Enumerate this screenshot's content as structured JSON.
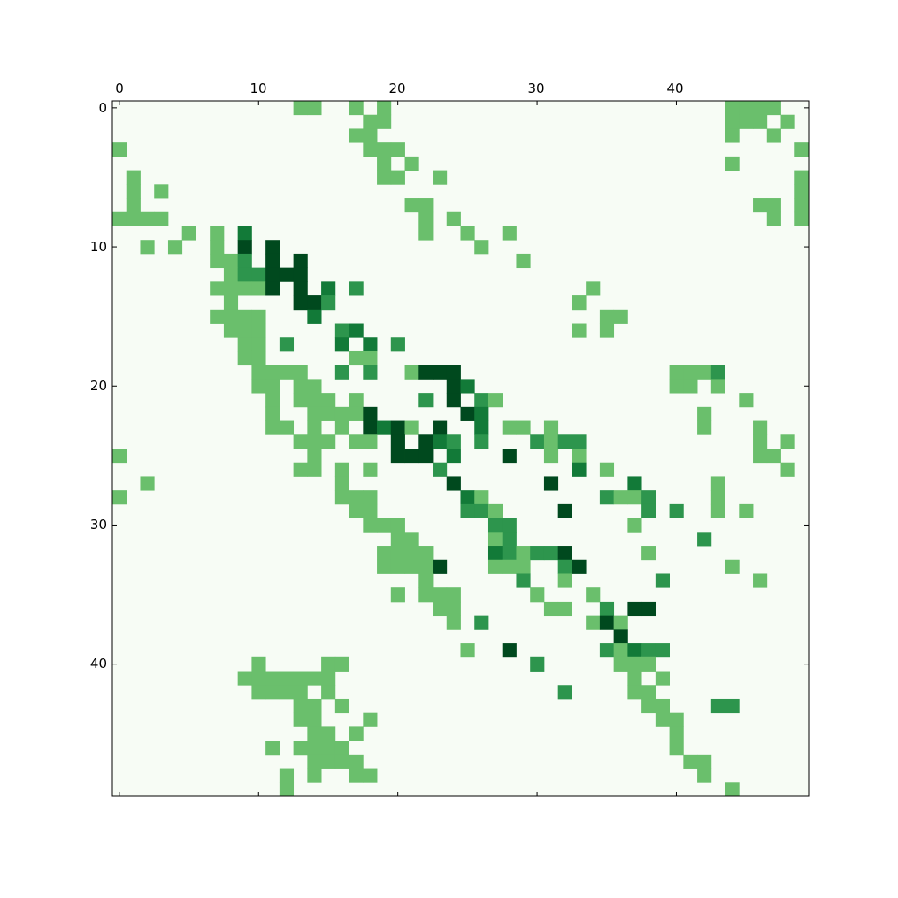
{
  "chart_data": {
    "type": "heatmap",
    "title": "",
    "xlabel": "",
    "ylabel": "",
    "rows": 50,
    "cols": 50,
    "x_axis_position": "top",
    "x_range": [
      0,
      49
    ],
    "y_range": [
      0,
      49
    ],
    "x_ticks": [
      "0",
      "10",
      "20",
      "30",
      "40"
    ],
    "y_ticks": [
      "0",
      "10",
      "20",
      "30",
      "40"
    ],
    "grid": false,
    "colormap": "Greens",
    "colors": {
      "background": "#f7fcf5",
      "level_1": "#6abf6c",
      "level_2": "#2d954d",
      "level_3": "#127a38",
      "level_4": "#00491e"
    },
    "value_levels": [
      1,
      2,
      3,
      4
    ],
    "cells": [
      [
        0,
        13,
        1
      ],
      [
        0,
        14,
        1
      ],
      [
        0,
        17,
        1
      ],
      [
        0,
        19,
        1
      ],
      [
        0,
        44,
        1
      ],
      [
        0,
        45,
        1
      ],
      [
        0,
        46,
        1
      ],
      [
        0,
        47,
        1
      ],
      [
        1,
        18,
        1
      ],
      [
        1,
        19,
        1
      ],
      [
        1,
        44,
        1
      ],
      [
        1,
        45,
        1
      ],
      [
        1,
        46,
        1
      ],
      [
        1,
        48,
        1
      ],
      [
        2,
        17,
        1
      ],
      [
        2,
        18,
        1
      ],
      [
        2,
        44,
        1
      ],
      [
        2,
        47,
        1
      ],
      [
        3,
        0,
        1
      ],
      [
        3,
        18,
        1
      ],
      [
        3,
        19,
        1
      ],
      [
        3,
        20,
        1
      ],
      [
        3,
        49,
        1
      ],
      [
        4,
        19,
        1
      ],
      [
        4,
        21,
        1
      ],
      [
        4,
        44,
        1
      ],
      [
        5,
        1,
        1
      ],
      [
        5,
        19,
        1
      ],
      [
        5,
        20,
        1
      ],
      [
        5,
        23,
        1
      ],
      [
        5,
        49,
        1
      ],
      [
        6,
        1,
        1
      ],
      [
        6,
        3,
        1
      ],
      [
        6,
        49,
        1
      ],
      [
        7,
        1,
        1
      ],
      [
        7,
        21,
        1
      ],
      [
        7,
        22,
        1
      ],
      [
        7,
        46,
        1
      ],
      [
        7,
        47,
        1
      ],
      [
        7,
        49,
        1
      ],
      [
        8,
        0,
        1
      ],
      [
        8,
        1,
        1
      ],
      [
        8,
        2,
        1
      ],
      [
        8,
        3,
        1
      ],
      [
        8,
        22,
        1
      ],
      [
        8,
        24,
        1
      ],
      [
        8,
        47,
        1
      ],
      [
        8,
        49,
        1
      ],
      [
        9,
        5,
        1
      ],
      [
        9,
        7,
        1
      ],
      [
        9,
        9,
        3
      ],
      [
        9,
        22,
        1
      ],
      [
        9,
        25,
        1
      ],
      [
        9,
        28,
        1
      ],
      [
        10,
        2,
        1
      ],
      [
        10,
        4,
        1
      ],
      [
        10,
        7,
        1
      ],
      [
        10,
        9,
        4
      ],
      [
        10,
        11,
        4
      ],
      [
        10,
        26,
        1
      ],
      [
        11,
        7,
        1
      ],
      [
        11,
        8,
        1
      ],
      [
        11,
        9,
        2
      ],
      [
        11,
        11,
        4
      ],
      [
        11,
        13,
        4
      ],
      [
        11,
        29,
        1
      ],
      [
        12,
        8,
        1
      ],
      [
        12,
        9,
        2
      ],
      [
        12,
        10,
        2
      ],
      [
        12,
        11,
        4
      ],
      [
        12,
        12,
        4
      ],
      [
        12,
        13,
        4
      ],
      [
        13,
        7,
        1
      ],
      [
        13,
        8,
        1
      ],
      [
        13,
        9,
        1
      ],
      [
        13,
        10,
        1
      ],
      [
        13,
        11,
        4
      ],
      [
        13,
        13,
        4
      ],
      [
        13,
        15,
        3
      ],
      [
        13,
        17,
        2
      ],
      [
        13,
        34,
        1
      ],
      [
        14,
        8,
        1
      ],
      [
        14,
        13,
        4
      ],
      [
        14,
        14,
        4
      ],
      [
        14,
        15,
        2
      ],
      [
        14,
        33,
        1
      ],
      [
        15,
        7,
        1
      ],
      [
        15,
        8,
        1
      ],
      [
        15,
        9,
        1
      ],
      [
        15,
        10,
        1
      ],
      [
        15,
        14,
        3
      ],
      [
        15,
        35,
        1
      ],
      [
        15,
        36,
        1
      ],
      [
        16,
        8,
        1
      ],
      [
        16,
        9,
        1
      ],
      [
        16,
        10,
        1
      ],
      [
        16,
        16,
        2
      ],
      [
        16,
        17,
        3
      ],
      [
        16,
        33,
        1
      ],
      [
        16,
        35,
        1
      ],
      [
        17,
        9,
        1
      ],
      [
        17,
        10,
        1
      ],
      [
        17,
        12,
        2
      ],
      [
        17,
        16,
        3
      ],
      [
        17,
        18,
        3
      ],
      [
        17,
        20,
        2
      ],
      [
        18,
        9,
        1
      ],
      [
        18,
        10,
        1
      ],
      [
        18,
        17,
        1
      ],
      [
        18,
        18,
        1
      ],
      [
        19,
        10,
        1
      ],
      [
        19,
        11,
        1
      ],
      [
        19,
        12,
        1
      ],
      [
        19,
        13,
        1
      ],
      [
        19,
        16,
        2
      ],
      [
        19,
        18,
        2
      ],
      [
        19,
        21,
        1
      ],
      [
        19,
        22,
        4
      ],
      [
        19,
        23,
        4
      ],
      [
        19,
        24,
        4
      ],
      [
        19,
        40,
        1
      ],
      [
        19,
        41,
        1
      ],
      [
        19,
        42,
        1
      ],
      [
        19,
        43,
        2
      ],
      [
        20,
        10,
        1
      ],
      [
        20,
        11,
        1
      ],
      [
        20,
        13,
        1
      ],
      [
        20,
        14,
        1
      ],
      [
        20,
        24,
        4
      ],
      [
        20,
        25,
        3
      ],
      [
        20,
        40,
        1
      ],
      [
        20,
        41,
        1
      ],
      [
        20,
        43,
        1
      ],
      [
        21,
        11,
        1
      ],
      [
        21,
        13,
        1
      ],
      [
        21,
        14,
        1
      ],
      [
        21,
        15,
        1
      ],
      [
        21,
        17,
        1
      ],
      [
        21,
        22,
        2
      ],
      [
        21,
        24,
        4
      ],
      [
        21,
        26,
        2
      ],
      [
        21,
        27,
        1
      ],
      [
        21,
        45,
        1
      ],
      [
        22,
        11,
        1
      ],
      [
        22,
        14,
        1
      ],
      [
        22,
        15,
        1
      ],
      [
        22,
        16,
        1
      ],
      [
        22,
        17,
        1
      ],
      [
        22,
        18,
        4
      ],
      [
        22,
        25,
        4
      ],
      [
        22,
        26,
        3
      ],
      [
        22,
        42,
        1
      ],
      [
        23,
        11,
        1
      ],
      [
        23,
        12,
        1
      ],
      [
        23,
        14,
        1
      ],
      [
        23,
        16,
        1
      ],
      [
        23,
        18,
        4
      ],
      [
        23,
        19,
        3
      ],
      [
        23,
        20,
        4
      ],
      [
        23,
        21,
        1
      ],
      [
        23,
        23,
        4
      ],
      [
        23,
        26,
        3
      ],
      [
        23,
        28,
        1
      ],
      [
        23,
        29,
        1
      ],
      [
        23,
        31,
        1
      ],
      [
        23,
        42,
        1
      ],
      [
        23,
        46,
        1
      ],
      [
        24,
        13,
        1
      ],
      [
        24,
        14,
        1
      ],
      [
        24,
        15,
        1
      ],
      [
        24,
        17,
        1
      ],
      [
        24,
        18,
        1
      ],
      [
        24,
        20,
        4
      ],
      [
        24,
        22,
        4
      ],
      [
        24,
        23,
        3
      ],
      [
        24,
        24,
        2
      ],
      [
        24,
        26,
        2
      ],
      [
        24,
        30,
        2
      ],
      [
        24,
        31,
        1
      ],
      [
        24,
        32,
        2
      ],
      [
        24,
        33,
        2
      ],
      [
        24,
        46,
        1
      ],
      [
        24,
        48,
        1
      ],
      [
        25,
        0,
        1
      ],
      [
        25,
        14,
        1
      ],
      [
        25,
        20,
        4
      ],
      [
        25,
        21,
        4
      ],
      [
        25,
        22,
        4
      ],
      [
        25,
        24,
        3
      ],
      [
        25,
        28,
        4
      ],
      [
        25,
        31,
        1
      ],
      [
        25,
        33,
        1
      ],
      [
        25,
        46,
        1
      ],
      [
        25,
        47,
        1
      ],
      [
        26,
        13,
        1
      ],
      [
        26,
        14,
        1
      ],
      [
        26,
        16,
        1
      ],
      [
        26,
        18,
        1
      ],
      [
        26,
        23,
        2
      ],
      [
        26,
        33,
        3
      ],
      [
        26,
        35,
        1
      ],
      [
        26,
        48,
        1
      ],
      [
        27,
        2,
        1
      ],
      [
        27,
        16,
        1
      ],
      [
        27,
        24,
        4
      ],
      [
        27,
        31,
        4
      ],
      [
        27,
        37,
        3
      ],
      [
        27,
        43,
        1
      ],
      [
        28,
        0,
        1
      ],
      [
        28,
        16,
        1
      ],
      [
        28,
        17,
        1
      ],
      [
        28,
        18,
        1
      ],
      [
        28,
        25,
        3
      ],
      [
        28,
        26,
        1
      ],
      [
        28,
        35,
        2
      ],
      [
        28,
        36,
        1
      ],
      [
        28,
        37,
        1
      ],
      [
        28,
        38,
        2
      ],
      [
        28,
        43,
        1
      ],
      [
        29,
        17,
        1
      ],
      [
        29,
        18,
        1
      ],
      [
        29,
        25,
        2
      ],
      [
        29,
        26,
        2
      ],
      [
        29,
        27,
        1
      ],
      [
        29,
        32,
        4
      ],
      [
        29,
        38,
        2
      ],
      [
        29,
        40,
        2
      ],
      [
        29,
        43,
        1
      ],
      [
        29,
        45,
        1
      ],
      [
        30,
        18,
        1
      ],
      [
        30,
        19,
        1
      ],
      [
        30,
        20,
        1
      ],
      [
        30,
        27,
        2
      ],
      [
        30,
        28,
        2
      ],
      [
        30,
        37,
        1
      ],
      [
        31,
        20,
        1
      ],
      [
        31,
        21,
        1
      ],
      [
        31,
        27,
        1
      ],
      [
        31,
        28,
        2
      ],
      [
        31,
        42,
        2
      ],
      [
        32,
        19,
        1
      ],
      [
        32,
        20,
        1
      ],
      [
        32,
        21,
        1
      ],
      [
        32,
        22,
        1
      ],
      [
        32,
        27,
        3
      ],
      [
        32,
        28,
        2
      ],
      [
        32,
        29,
        1
      ],
      [
        32,
        30,
        2
      ],
      [
        32,
        31,
        2
      ],
      [
        32,
        32,
        4
      ],
      [
        32,
        38,
        1
      ],
      [
        33,
        19,
        1
      ],
      [
        33,
        20,
        1
      ],
      [
        33,
        21,
        1
      ],
      [
        33,
        22,
        1
      ],
      [
        33,
        23,
        4
      ],
      [
        33,
        27,
        1
      ],
      [
        33,
        28,
        1
      ],
      [
        33,
        29,
        1
      ],
      [
        33,
        32,
        2
      ],
      [
        33,
        33,
        4
      ],
      [
        33,
        44,
        1
      ],
      [
        34,
        22,
        1
      ],
      [
        34,
        29,
        2
      ],
      [
        34,
        32,
        1
      ],
      [
        34,
        39,
        2
      ],
      [
        34,
        46,
        1
      ],
      [
        35,
        20,
        1
      ],
      [
        35,
        22,
        1
      ],
      [
        35,
        23,
        1
      ],
      [
        35,
        24,
        1
      ],
      [
        35,
        30,
        1
      ],
      [
        35,
        34,
        1
      ],
      [
        36,
        23,
        1
      ],
      [
        36,
        24,
        1
      ],
      [
        36,
        31,
        1
      ],
      [
        36,
        32,
        1
      ],
      [
        36,
        35,
        2
      ],
      [
        36,
        37,
        4
      ],
      [
        36,
        38,
        4
      ],
      [
        37,
        24,
        1
      ],
      [
        37,
        26,
        2
      ],
      [
        37,
        34,
        1
      ],
      [
        37,
        35,
        4
      ],
      [
        37,
        36,
        1
      ],
      [
        38,
        36,
        4
      ],
      [
        39,
        25,
        1
      ],
      [
        39,
        28,
        4
      ],
      [
        39,
        35,
        2
      ],
      [
        39,
        36,
        1
      ],
      [
        39,
        37,
        3
      ],
      [
        39,
        38,
        2
      ],
      [
        39,
        39,
        2
      ],
      [
        40,
        10,
        1
      ],
      [
        40,
        15,
        1
      ],
      [
        40,
        16,
        1
      ],
      [
        40,
        30,
        2
      ],
      [
        40,
        36,
        1
      ],
      [
        40,
        37,
        1
      ],
      [
        40,
        38,
        1
      ],
      [
        41,
        9,
        1
      ],
      [
        41,
        10,
        1
      ],
      [
        41,
        11,
        1
      ],
      [
        41,
        12,
        1
      ],
      [
        41,
        13,
        1
      ],
      [
        41,
        14,
        1
      ],
      [
        41,
        15,
        1
      ],
      [
        41,
        37,
        1
      ],
      [
        41,
        39,
        1
      ],
      [
        42,
        10,
        1
      ],
      [
        42,
        11,
        1
      ],
      [
        42,
        12,
        1
      ],
      [
        42,
        13,
        1
      ],
      [
        42,
        15,
        1
      ],
      [
        42,
        32,
        2
      ],
      [
        42,
        37,
        1
      ],
      [
        42,
        38,
        1
      ],
      [
        43,
        13,
        1
      ],
      [
        43,
        14,
        1
      ],
      [
        43,
        16,
        1
      ],
      [
        43,
        38,
        1
      ],
      [
        43,
        39,
        1
      ],
      [
        43,
        43,
        2
      ],
      [
        43,
        44,
        2
      ],
      [
        44,
        13,
        1
      ],
      [
        44,
        14,
        1
      ],
      [
        44,
        18,
        1
      ],
      [
        44,
        39,
        1
      ],
      [
        44,
        40,
        1
      ],
      [
        45,
        14,
        1
      ],
      [
        45,
        15,
        1
      ],
      [
        45,
        17,
        1
      ],
      [
        45,
        40,
        1
      ],
      [
        46,
        11,
        1
      ],
      [
        46,
        13,
        1
      ],
      [
        46,
        14,
        1
      ],
      [
        46,
        15,
        1
      ],
      [
        46,
        16,
        1
      ],
      [
        46,
        40,
        1
      ],
      [
        47,
        14,
        1
      ],
      [
        47,
        15,
        1
      ],
      [
        47,
        16,
        1
      ],
      [
        47,
        17,
        1
      ],
      [
        47,
        41,
        1
      ],
      [
        47,
        42,
        1
      ],
      [
        48,
        12,
        1
      ],
      [
        48,
        14,
        1
      ],
      [
        48,
        17,
        1
      ],
      [
        48,
        18,
        1
      ],
      [
        48,
        42,
        1
      ],
      [
        49,
        12,
        1
      ],
      [
        49,
        44,
        1
      ]
    ]
  }
}
